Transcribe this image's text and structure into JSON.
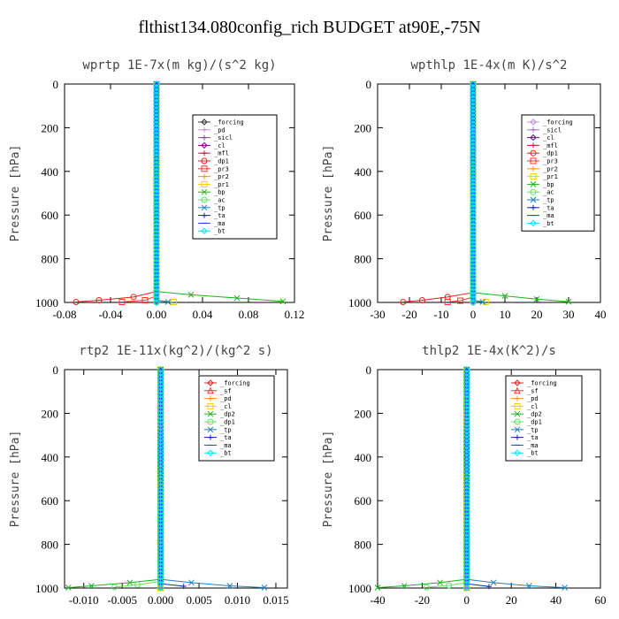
{
  "title": "flthist134.080config_rich  BUDGET at90E,-75N",
  "chart_data": [
    {
      "type": "line",
      "title": "wprtp  1E-7x(m kg)/(s^2 kg)",
      "ylabel": "Pressure [hPa]",
      "xlim": [
        -0.08,
        0.12
      ],
      "ylim": [
        1000,
        0
      ],
      "xticks": [
        "-0.08",
        "-0.04",
        "0.00",
        "0.04",
        "0.08",
        "0.12"
      ],
      "xtick_values": [
        -0.08,
        -0.04,
        0.0,
        0.04,
        0.08,
        0.12
      ],
      "yticks": [
        "0",
        "200",
        "400",
        "600",
        "800",
        "1000"
      ],
      "ytick_values": [
        0,
        200,
        400,
        600,
        800,
        1000
      ],
      "series": [
        {
          "name": "_forcing",
          "color": "#333333",
          "marker": "diamond",
          "points": [
            [
              0,
              0
            ],
            [
              0,
              960
            ],
            [
              0,
              1000
            ]
          ]
        },
        {
          "name": "_pd",
          "color": "#c090e0",
          "marker": "plus",
          "points": [
            [
              0,
              0
            ],
            [
              0,
              1000
            ]
          ]
        },
        {
          "name": "_sicl",
          "color": "#8040c0",
          "marker": "plus",
          "points": [
            [
              0,
              0
            ],
            [
              0,
              1000
            ]
          ]
        },
        {
          "name": "_cl",
          "color": "#800080",
          "marker": "diamond",
          "points": [
            [
              0,
              0
            ],
            [
              0,
              1000
            ]
          ]
        },
        {
          "name": "_mfl",
          "color": "#d01040",
          "marker": "plus",
          "points": [
            [
              0,
              0
            ],
            [
              0,
              1000
            ]
          ]
        },
        {
          "name": "_dp1",
          "color": "#e02020",
          "marker": "circle",
          "points": [
            [
              0,
              0
            ],
            [
              0,
              950
            ],
            [
              -0.02,
              975
            ],
            [
              -0.05,
              990
            ],
            [
              -0.07,
              998
            ]
          ]
        },
        {
          "name": "_pr3",
          "color": "#ff3030",
          "marker": "square",
          "points": [
            [
              0,
              0
            ],
            [
              0,
              970
            ],
            [
              -0.01,
              990
            ],
            [
              -0.03,
              998
            ]
          ]
        },
        {
          "name": "_pr2",
          "color": "#ff9020",
          "marker": "plus",
          "points": [
            [
              0,
              0
            ],
            [
              0,
              1000
            ]
          ]
        },
        {
          "name": "_pr1",
          "color": "#f0d000",
          "marker": "square",
          "points": [
            [
              0,
              0
            ],
            [
              0,
              990
            ],
            [
              0.015,
              998
            ]
          ]
        },
        {
          "name": "_bp",
          "color": "#20b020",
          "marker": "cross",
          "points": [
            [
              0,
              0
            ],
            [
              0,
              950
            ],
            [
              0.03,
              965
            ],
            [
              0.07,
              980
            ],
            [
              0.11,
              995
            ]
          ]
        },
        {
          "name": "_ac",
          "color": "#60e060",
          "marker": "circle",
          "points": [
            [
              0,
              0
            ],
            [
              0,
              1000
            ]
          ]
        },
        {
          "name": "_tp",
          "color": "#2080c0",
          "marker": "cross",
          "points": [
            [
              0,
              0
            ],
            [
              0,
              990
            ],
            [
              0.01,
              998
            ]
          ]
        },
        {
          "name": "_ta",
          "color": "#1020a0",
          "marker": "plus",
          "points": [
            [
              0,
              0
            ],
            [
              0,
              1000
            ]
          ]
        },
        {
          "name": "_ma",
          "color": "#2040ff",
          "marker": "dash",
          "points": [
            [
              0,
              0
            ],
            [
              0,
              1000
            ]
          ]
        },
        {
          "name": "_bt",
          "color": "#00e0ff",
          "marker": "diamond",
          "points": [
            [
              0,
              0
            ],
            [
              0,
              1000
            ]
          ]
        }
      ]
    },
    {
      "type": "line",
      "title": "wpthlp  1E-4x(m K)/s^2",
      "ylabel": "Pressure [hPa]",
      "xlim": [
        -30,
        40
      ],
      "ylim": [
        1000,
        0
      ],
      "xticks": [
        "-30",
        "-20",
        "-10",
        "0",
        "10",
        "20",
        "30",
        "40"
      ],
      "xtick_values": [
        -30,
        -20,
        -10,
        0,
        10,
        20,
        30,
        40
      ],
      "yticks": [
        "0",
        "200",
        "400",
        "600",
        "800",
        "1000"
      ],
      "ytick_values": [
        0,
        200,
        400,
        600,
        800,
        1000
      ],
      "series": [
        {
          "name": "_forcing",
          "color": "#c090e0",
          "marker": "diamond",
          "points": [
            [
              0,
              0
            ],
            [
              0,
              1000
            ]
          ]
        },
        {
          "name": "_sicl",
          "color": "#a070d0",
          "marker": "plus",
          "points": [
            [
              0,
              0
            ],
            [
              0,
              1000
            ]
          ]
        },
        {
          "name": "_cl",
          "color": "#800080",
          "marker": "diamond",
          "points": [
            [
              0,
              0
            ],
            [
              0,
              1000
            ]
          ]
        },
        {
          "name": "_mfl",
          "color": "#d01040",
          "marker": "plus",
          "points": [
            [
              0,
              0
            ],
            [
              0,
              1000
            ]
          ]
        },
        {
          "name": "_dp1",
          "color": "#e02020",
          "marker": "circle",
          "points": [
            [
              0,
              0
            ],
            [
              0,
              955
            ],
            [
              -8,
              975
            ],
            [
              -16,
              990
            ],
            [
              -22,
              998
            ]
          ]
        },
        {
          "name": "_pr3",
          "color": "#ff3030",
          "marker": "square",
          "points": [
            [
              0,
              0
            ],
            [
              0,
              975
            ],
            [
              -4,
              992
            ],
            [
              -8,
              998
            ]
          ]
        },
        {
          "name": "_pr2",
          "color": "#ff9020",
          "marker": "plus",
          "points": [
            [
              0,
              0
            ],
            [
              0,
              1000
            ]
          ]
        },
        {
          "name": "_pr1",
          "color": "#f0d000",
          "marker": "square",
          "points": [
            [
              0,
              0
            ],
            [
              0,
              990
            ],
            [
              4,
              998
            ]
          ]
        },
        {
          "name": "_bp",
          "color": "#20b020",
          "marker": "cross",
          "points": [
            [
              0,
              0
            ],
            [
              0,
              955
            ],
            [
              10,
              970
            ],
            [
              20,
              985
            ],
            [
              30,
              997
            ]
          ]
        },
        {
          "name": "_ac",
          "color": "#60e060",
          "marker": "circle",
          "points": [
            [
              0,
              0
            ],
            [
              0,
              1000
            ]
          ]
        },
        {
          "name": "_tp",
          "color": "#2080c0",
          "marker": "cross",
          "points": [
            [
              0,
              0
            ],
            [
              0,
              990
            ],
            [
              3,
              998
            ]
          ]
        },
        {
          "name": "_ta",
          "color": "#1020a0",
          "marker": "plus",
          "points": [
            [
              0,
              0
            ],
            [
              0,
              1000
            ]
          ]
        },
        {
          "name": "_ma",
          "color": "#2040ff",
          "marker": "dash",
          "points": [
            [
              0,
              0
            ],
            [
              0,
              1000
            ]
          ]
        },
        {
          "name": "_bt",
          "color": "#00e0ff",
          "marker": "diamond",
          "points": [
            [
              0,
              0
            ],
            [
              0,
              1000
            ]
          ]
        }
      ]
    },
    {
      "type": "line",
      "title": "rtp2  1E-11x(kg^2)/(kg^2 s)",
      "ylabel": "Pressure [hPa]",
      "xlim": [
        -0.0125,
        0.0165
      ],
      "ylim": [
        1000,
        0
      ],
      "xticks": [
        "-0.010",
        "-0.005",
        "0.000",
        "0.005",
        "0.010",
        "0.015"
      ],
      "xtick_values": [
        -0.01,
        -0.005,
        0.0,
        0.005,
        0.01,
        0.015
      ],
      "yticks": [
        "0",
        "200",
        "400",
        "600",
        "800",
        "1000"
      ],
      "ytick_values": [
        0,
        200,
        400,
        600,
        800,
        1000
      ],
      "series": [
        {
          "name": "_forcing",
          "color": "#e02020",
          "marker": "diamond",
          "points": [
            [
              0,
              0
            ],
            [
              0,
              1000
            ]
          ]
        },
        {
          "name": "_sf",
          "color": "#ff3030",
          "marker": "triangle",
          "points": [
            [
              0,
              0
            ],
            [
              0,
              1000
            ]
          ]
        },
        {
          "name": "_pd",
          "color": "#ff9020",
          "marker": "plus",
          "points": [
            [
              0,
              0
            ],
            [
              0,
              1000
            ]
          ]
        },
        {
          "name": "_cl",
          "color": "#f0d000",
          "marker": "square",
          "points": [
            [
              0,
              0
            ],
            [
              0,
              1000
            ]
          ]
        },
        {
          "name": "_dp2",
          "color": "#20b020",
          "marker": "cross",
          "points": [
            [
              0,
              0
            ],
            [
              0,
              960
            ],
            [
              -0.004,
              975
            ],
            [
              -0.009,
              990
            ],
            [
              -0.012,
              998
            ]
          ]
        },
        {
          "name": "_dp1",
          "color": "#60e060",
          "marker": "circle",
          "points": [
            [
              0,
              0
            ],
            [
              0,
              970
            ],
            [
              -0.003,
              985
            ],
            [
              -0.006,
              996
            ]
          ]
        },
        {
          "name": "_tp",
          "color": "#2080c0",
          "marker": "cross",
          "points": [
            [
              0,
              0
            ],
            [
              0,
              960
            ],
            [
              0.004,
              975
            ],
            [
              0.009,
              990
            ],
            [
              0.0135,
              998
            ]
          ]
        },
        {
          "name": "_ta",
          "color": "#1020a0",
          "marker": "plus",
          "points": [
            [
              0,
              0
            ],
            [
              0,
              980
            ],
            [
              0.003,
              992
            ]
          ]
        },
        {
          "name": "_ma",
          "color": "#2040ff",
          "marker": "dash",
          "points": [
            [
              0,
              0
            ],
            [
              0,
              1000
            ]
          ]
        },
        {
          "name": "_bt",
          "color": "#00e0ff",
          "marker": "diamond",
          "points": [
            [
              0,
              0
            ],
            [
              0,
              1000
            ]
          ]
        }
      ]
    },
    {
      "type": "line",
      "title": "thlp2  1E-4x(K^2)/s",
      "ylabel": "Pressure [hPa]",
      "xlim": [
        -40,
        60
      ],
      "ylim": [
        1000,
        0
      ],
      "xticks": [
        "-40",
        "-20",
        "0",
        "20",
        "40",
        "60"
      ],
      "xtick_values": [
        -40,
        -20,
        0,
        20,
        40,
        60
      ],
      "yticks": [
        "0",
        "200",
        "400",
        "600",
        "800",
        "1000"
      ],
      "ytick_values": [
        0,
        200,
        400,
        600,
        800,
        1000
      ],
      "series": [
        {
          "name": "_forcing",
          "color": "#e02020",
          "marker": "diamond",
          "points": [
            [
              0,
              0
            ],
            [
              0,
              1000
            ]
          ]
        },
        {
          "name": "_sf",
          "color": "#ff3030",
          "marker": "triangle",
          "points": [
            [
              0,
              0
            ],
            [
              0,
              1000
            ]
          ]
        },
        {
          "name": "_pd",
          "color": "#ff9020",
          "marker": "plus",
          "points": [
            [
              0,
              0
            ],
            [
              0,
              1000
            ]
          ]
        },
        {
          "name": "_cl",
          "color": "#f0d000",
          "marker": "square",
          "points": [
            [
              0,
              0
            ],
            [
              0,
              1000
            ]
          ]
        },
        {
          "name": "_dp2",
          "color": "#20b020",
          "marker": "cross",
          "points": [
            [
              0,
              0
            ],
            [
              0,
              960
            ],
            [
              -12,
              975
            ],
            [
              -28,
              990
            ],
            [
              -40,
              998
            ]
          ]
        },
        {
          "name": "_dp1",
          "color": "#60e060",
          "marker": "circle",
          "points": [
            [
              0,
              0
            ],
            [
              0,
              975
            ],
            [
              -8,
              988
            ],
            [
              -18,
              997
            ]
          ]
        },
        {
          "name": "_tp",
          "color": "#2080c0",
          "marker": "cross",
          "points": [
            [
              0,
              0
            ],
            [
              0,
              960
            ],
            [
              12,
              975
            ],
            [
              28,
              990
            ],
            [
              44,
              998
            ]
          ]
        },
        {
          "name": "_ta",
          "color": "#1020a0",
          "marker": "plus",
          "points": [
            [
              0,
              0
            ],
            [
              0,
              980
            ],
            [
              10,
              993
            ]
          ]
        },
        {
          "name": "_ma",
          "color": "#2040ff",
          "marker": "dash",
          "points": [
            [
              0,
              0
            ],
            [
              0,
              1000
            ]
          ]
        },
        {
          "name": "_bt",
          "color": "#00e0ff",
          "marker": "diamond",
          "points": [
            [
              0,
              0
            ],
            [
              0,
              1000
            ]
          ]
        }
      ]
    }
  ]
}
